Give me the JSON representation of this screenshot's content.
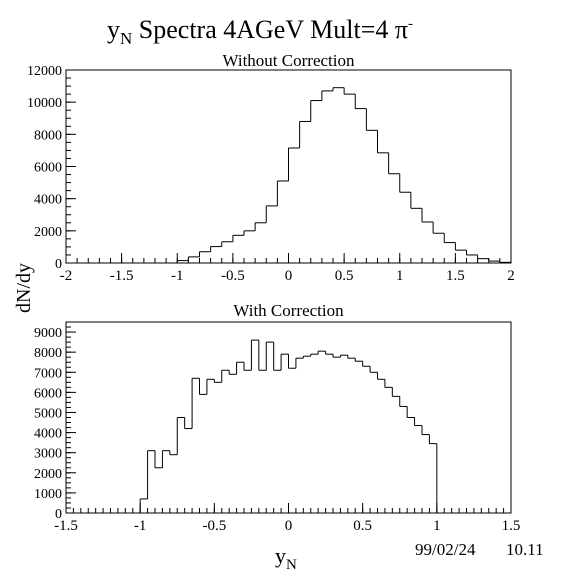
{
  "page": {
    "title_main": "y",
    "title_sub": "N",
    "title_rest": " Spectra 4AGeV Mult=4 ",
    "title_pi": "π",
    "title_sup": "-",
    "ylabel": "dN/dy",
    "xlabel_main": "y",
    "xlabel_sub": "N",
    "footer_date": "99/02/24",
    "footer_time": "10.11"
  },
  "chart_data": [
    {
      "type": "histogram",
      "title": "Without Correction",
      "xlim": [
        -2,
        2
      ],
      "ylim": [
        0,
        12000
      ],
      "yticks": [
        0,
        2000,
        4000,
        6000,
        8000,
        10000,
        12000
      ],
      "xticks": [
        -2,
        -1.5,
        -1,
        -0.5,
        0,
        0.5,
        1,
        1.5,
        2
      ],
      "bin_width": 0.1,
      "x": [
        -1.0,
        -0.9,
        -0.8,
        -0.7,
        -0.6,
        -0.5,
        -0.4,
        -0.3,
        -0.2,
        -0.1,
        0.0,
        0.1,
        0.2,
        0.3,
        0.4,
        0.5,
        0.6,
        0.7,
        0.8,
        0.9,
        1.0,
        1.1,
        1.2,
        1.3,
        1.4,
        1.5,
        1.6,
        1.7,
        1.8,
        1.9
      ],
      "values": [
        150,
        380,
        700,
        1020,
        1320,
        1720,
        2000,
        2500,
        3550,
        5100,
        7150,
        8800,
        10100,
        10700,
        10900,
        10500,
        9600,
        8250,
        6850,
        5550,
        4400,
        3400,
        2550,
        1850,
        1270,
        800,
        500,
        270,
        120,
        40
      ]
    },
    {
      "type": "histogram",
      "title": "With Correction",
      "xlim": [
        -1.5,
        1.5
      ],
      "ylim": [
        0,
        9500
      ],
      "yticks": [
        0,
        1000,
        2000,
        3000,
        4000,
        5000,
        6000,
        7000,
        8000,
        9000
      ],
      "xticks": [
        -1.5,
        -1,
        -0.5,
        0,
        0.5,
        1,
        1.5
      ],
      "bin_width": 0.05,
      "x": [
        -1.0,
        -0.95,
        -0.9,
        -0.85,
        -0.8,
        -0.75,
        -0.7,
        -0.65,
        -0.6,
        -0.55,
        -0.5,
        -0.45,
        -0.4,
        -0.35,
        -0.3,
        -0.25,
        -0.2,
        -0.15,
        -0.1,
        -0.05,
        0.0,
        0.05,
        0.1,
        0.15,
        0.2,
        0.25,
        0.3,
        0.35,
        0.4,
        0.45,
        0.5,
        0.55,
        0.6,
        0.65,
        0.7,
        0.75,
        0.8,
        0.85,
        0.9,
        0.95
      ],
      "values": [
        700,
        3100,
        2250,
        3100,
        2900,
        4750,
        4200,
        6700,
        5900,
        6650,
        6500,
        7100,
        6900,
        7500,
        7100,
        8600,
        7100,
        8500,
        7100,
        7900,
        7200,
        7700,
        7800,
        7900,
        8050,
        7900,
        7750,
        7850,
        7700,
        7550,
        7300,
        7000,
        6650,
        6250,
        5800,
        5300,
        4750,
        4350,
        3900,
        3450
      ]
    }
  ]
}
